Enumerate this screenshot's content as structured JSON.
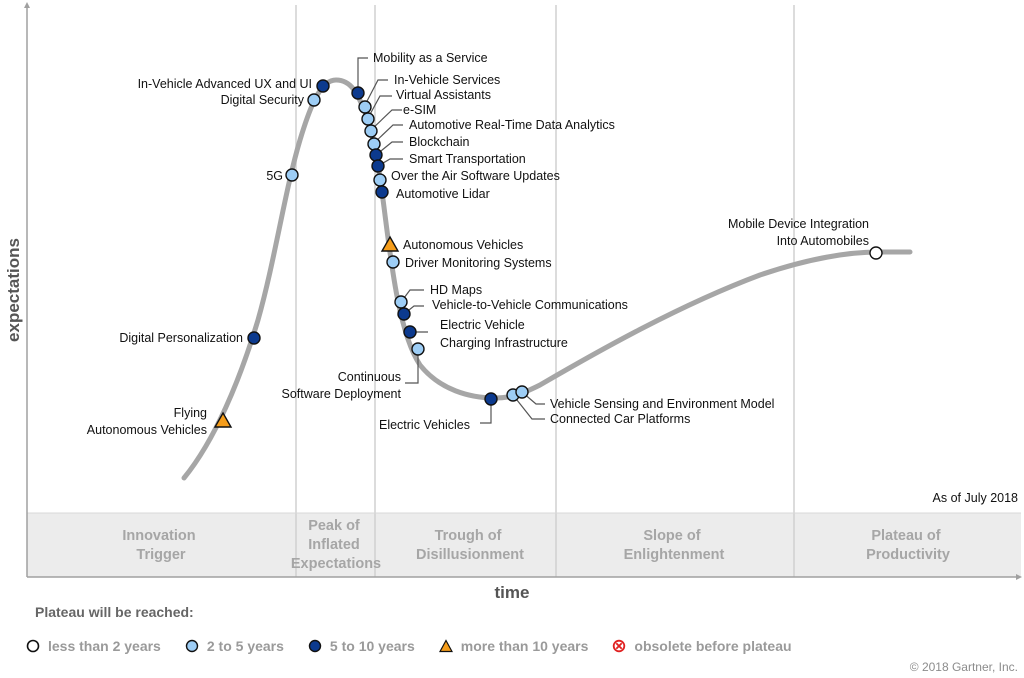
{
  "chart_data": {
    "type": "hype-cycle",
    "title": "",
    "xlabel": "time",
    "ylabel": "expectations",
    "as_of": "As of July 2018",
    "phases": [
      [
        "Innovation",
        "Trigger"
      ],
      [
        "Peak of",
        "Inflated",
        "Expectations"
      ],
      [
        "Trough of",
        "Disillusionment"
      ],
      [
        "Slope of",
        "Enlightenment"
      ],
      [
        "Plateau of",
        "Productivity"
      ]
    ],
    "technologies": [
      {
        "name": [
          "Flying",
          "Autonomous Vehicles"
        ],
        "category": "more than 10 years",
        "phase": "Innovation Trigger"
      },
      {
        "name": [
          "Digital Personalization"
        ],
        "category": "5 to 10 years",
        "phase": "Innovation Trigger"
      },
      {
        "name": [
          "5G"
        ],
        "category": "2 to 5 years",
        "phase": "Innovation Trigger"
      },
      {
        "name": [
          "Digital Security"
        ],
        "category": "2 to 5 years",
        "phase": "Peak of Inflated Expectations"
      },
      {
        "name": [
          "In-Vehicle Advanced UX and UI"
        ],
        "category": "5 to 10 years",
        "phase": "Peak of Inflated Expectations"
      },
      {
        "name": [
          "Mobility as a Service"
        ],
        "category": "5 to 10 years",
        "phase": "Peak of Inflated Expectations"
      },
      {
        "name": [
          "In-Vehicle Services"
        ],
        "category": "2 to 5 years",
        "phase": "Peak of Inflated Expectations"
      },
      {
        "name": [
          "Virtual Assistants"
        ],
        "category": "2 to 5 years",
        "phase": "Peak of Inflated Expectations"
      },
      {
        "name": [
          "e-SIM"
        ],
        "category": "2 to 5 years",
        "phase": "Peak of Inflated Expectations"
      },
      {
        "name": [
          "Automotive Real-Time Data Analytics"
        ],
        "category": "2 to 5 years",
        "phase": "Peak of Inflated Expectations"
      },
      {
        "name": [
          "Blockchain"
        ],
        "category": "5 to 10 years",
        "phase": "Peak of Inflated Expectations"
      },
      {
        "name": [
          "Smart Transportation"
        ],
        "category": "5 to 10 years",
        "phase": "Peak of Inflated Expectations"
      },
      {
        "name": [
          "Over the Air Software Updates"
        ],
        "category": "2 to 5 years",
        "phase": "Trough of Disillusionment"
      },
      {
        "name": [
          "Automotive Lidar"
        ],
        "category": "5 to 10 years",
        "phase": "Trough of Disillusionment"
      },
      {
        "name": [
          "Autonomous Vehicles"
        ],
        "category": "more than 10 years",
        "phase": "Trough of Disillusionment"
      },
      {
        "name": [
          "Driver Monitoring Systems"
        ],
        "category": "2 to 5 years",
        "phase": "Trough of Disillusionment"
      },
      {
        "name": [
          "HD Maps"
        ],
        "category": "2 to 5 years",
        "phase": "Trough of Disillusionment"
      },
      {
        "name": [
          "Vehicle-to-Vehicle Communications"
        ],
        "category": "5 to 10 years",
        "phase": "Trough of Disillusionment"
      },
      {
        "name": [
          "Electric Vehicle",
          "Charging Infrastructure"
        ],
        "category": "5 to 10 years",
        "phase": "Trough of Disillusionment"
      },
      {
        "name": [
          "Continuous",
          "Software Deployment"
        ],
        "category": "2 to 5 years",
        "phase": "Trough of Disillusionment"
      },
      {
        "name": [
          "Electric Vehicles"
        ],
        "category": "5 to 10 years",
        "phase": "Trough of Disillusionment"
      },
      {
        "name": [
          "Connected Car Platforms"
        ],
        "category": "2 to 5 years",
        "phase": "Trough of Disillusionment"
      },
      {
        "name": [
          "Vehicle Sensing and Environment Model"
        ],
        "category": "2 to 5 years",
        "phase": "Trough of Disillusionment"
      },
      {
        "name": [
          "Mobile Device Integration",
          "Into Automobiles"
        ],
        "category": "less than 2 years",
        "phase": "Plateau of Productivity"
      }
    ]
  },
  "legend": {
    "title": "Plateau will be reached:",
    "items": [
      {
        "label": "less than 2 years",
        "shape": "circle",
        "fill": "#ffffff"
      },
      {
        "label": "2 to 5 years",
        "shape": "circle",
        "fill": "#9dcdf5"
      },
      {
        "label": "5 to 10 years",
        "shape": "circle",
        "fill": "#0c3a8e"
      },
      {
        "label": "more than 10 years",
        "shape": "triangle",
        "fill": "#f59d1b"
      },
      {
        "label": "obsolete before plateau",
        "shape": "x-circle",
        "fill": "#e02020"
      }
    ]
  },
  "colors": {
    "curve": "#a6a6a6",
    "band": "#ececec",
    "divider": "#d0d0d0",
    "marker_stroke": "#111111"
  },
  "copyright": "© 2018 Gartner, Inc."
}
